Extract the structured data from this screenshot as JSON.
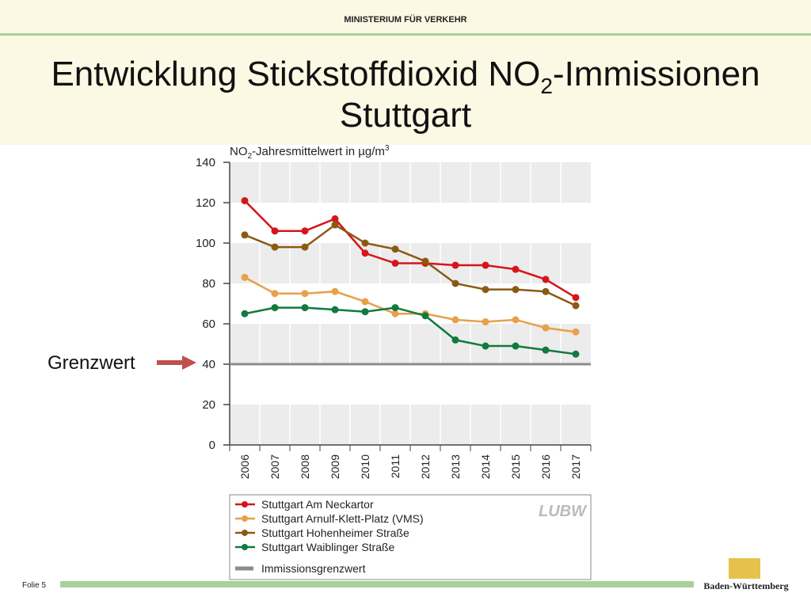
{
  "header": {
    "ministry": "MINISTERIUM FÜR VERKEHR",
    "title_parts": [
      "Entwicklung Stickstoffdioxid NO",
      "2",
      "-Immissionen",
      "Stuttgart"
    ]
  },
  "annotation": "Grenzwert",
  "footer": {
    "slide": "Folie 5",
    "state": "Baden-Württemberg"
  },
  "chart_data": {
    "type": "line",
    "y_label_parts": [
      "NO",
      "2",
      "-Jahresmittelwert in µg/m",
      "3"
    ],
    "logo": "LUBW",
    "categories": [
      "2006",
      "2007",
      "2008",
      "2009",
      "2010",
      "2011",
      "2012",
      "2013",
      "2014",
      "2015",
      "2016",
      "2017"
    ],
    "series": [
      {
        "name": "Stuttgart Am Neckartor",
        "color": "#d7141b",
        "values": [
          121,
          106,
          106,
          112,
          95,
          90,
          90,
          89,
          89,
          87,
          82,
          73
        ]
      },
      {
        "name": "Stuttgart Arnulf-Klett-Platz (VMS)",
        "color": "#e8a04a",
        "values": [
          83,
          75,
          75,
          76,
          71,
          65,
          65,
          62,
          61,
          62,
          58,
          56
        ]
      },
      {
        "name": "Stuttgart Hohenheimer Straße",
        "color": "#8b5a12",
        "values": [
          104,
          98,
          98,
          109,
          100,
          97,
          91,
          80,
          77,
          77,
          76,
          69
        ]
      },
      {
        "name": "Stuttgart Waiblinger Straße",
        "color": "#117a3e",
        "values": [
          65,
          68,
          68,
          67,
          66,
          68,
          64,
          52,
          49,
          49,
          47,
          45
        ]
      }
    ],
    "threshold": {
      "name": "Immissionsgrenzwert",
      "value": 40,
      "color": "#8c8c8c"
    },
    "ylim": [
      0,
      140
    ],
    "yticks": [
      0,
      20,
      40,
      60,
      80,
      100,
      120,
      140
    ],
    "grid": true
  }
}
